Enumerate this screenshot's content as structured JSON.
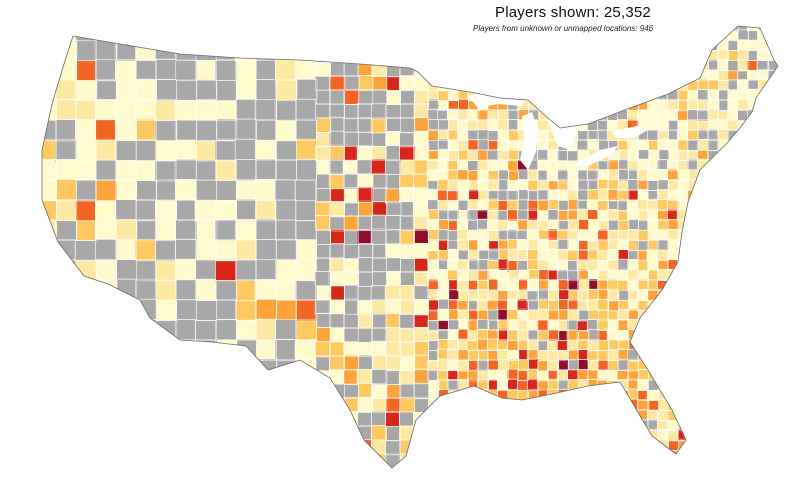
{
  "title": "Players shown: 25,352",
  "subtitle": "Players from unknown or unmapped locations: 946",
  "colors": {
    "no_players": "#a8a8a8",
    "very_low": "#fffbcc",
    "low": "#fee9a3",
    "medium": "#fec961",
    "medium_high": "#fda33a",
    "high": "#f26522",
    "very_high": "#d7261a",
    "highest": "#8e0f2a",
    "county_border": "#ffffff",
    "outline": "#6a6a6a"
  }
}
